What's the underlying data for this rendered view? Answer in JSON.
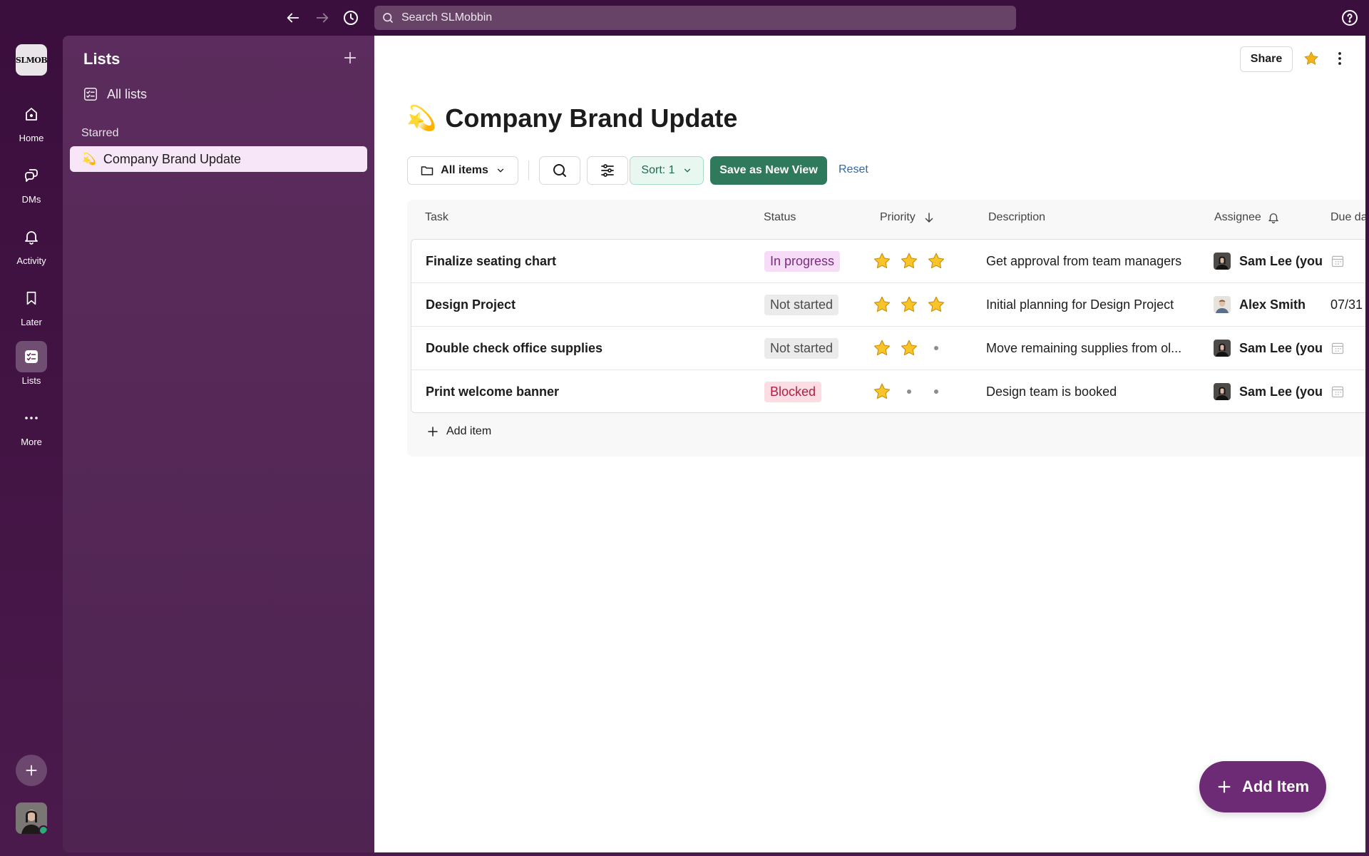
{
  "topbar": {
    "search_placeholder": "Search SLMobbin"
  },
  "rail": {
    "workspace_logo_text": "SLMOB",
    "items": [
      {
        "label": "Home",
        "icon": "home-icon"
      },
      {
        "label": "DMs",
        "icon": "dms-icon"
      },
      {
        "label": "Activity",
        "icon": "bell-icon"
      },
      {
        "label": "Later",
        "icon": "bookmark-icon"
      },
      {
        "label": "Lists",
        "icon": "lists-icon",
        "active": true
      },
      {
        "label": "More",
        "icon": "more-icon"
      }
    ]
  },
  "sidebar": {
    "title": "Lists",
    "all_lists_label": "All lists",
    "starred_section": "Starred",
    "starred_items": [
      {
        "emoji": "💫",
        "label": "Company Brand Update"
      }
    ]
  },
  "main": {
    "share_label": "Share",
    "title_emoji": "💫",
    "title": "Company Brand Update",
    "toolbar": {
      "view_label": "All items",
      "sort_label": "Sort: 1",
      "save_view_label": "Save as New View",
      "reset_label": "Reset"
    },
    "columns": {
      "task": "Task",
      "status": "Status",
      "priority": "Priority",
      "description": "Description",
      "assignee": "Assignee",
      "due": "Due da"
    },
    "rows": [
      {
        "task": "Finalize seating chart",
        "status": "In progress",
        "status_color": "#f6dcf7",
        "priority": 3,
        "description": "Get approval from team managers",
        "assignee": "Sam Lee (you",
        "due": ""
      },
      {
        "task": "Design Project",
        "status": "Not started",
        "status_color": "#ebebeb",
        "priority": 3,
        "description": "Initial planning for Design Project",
        "assignee": "Alex Smith",
        "due": "07/31"
      },
      {
        "task": "Double check office supplies",
        "status": "Not started",
        "status_color": "#ebebeb",
        "priority": 2,
        "description": "Move remaining supplies from ol...",
        "assignee": "Sam Lee (you",
        "due": ""
      },
      {
        "task": "Print welcome banner",
        "status": "Blocked",
        "status_color": "#fbdde3",
        "priority": 1,
        "description": "Design team is booked",
        "assignee": "Sam Lee (you",
        "due": ""
      }
    ],
    "add_item_row_label": "Add item",
    "fab_label": "Add Item"
  },
  "colors": {
    "aubergine": "#3b0f3d",
    "sidebar": "#5a2b5c",
    "accent_green": "#2f7a5c",
    "fab_purple": "#6d2a75",
    "star_gold": "#f2b21a"
  }
}
